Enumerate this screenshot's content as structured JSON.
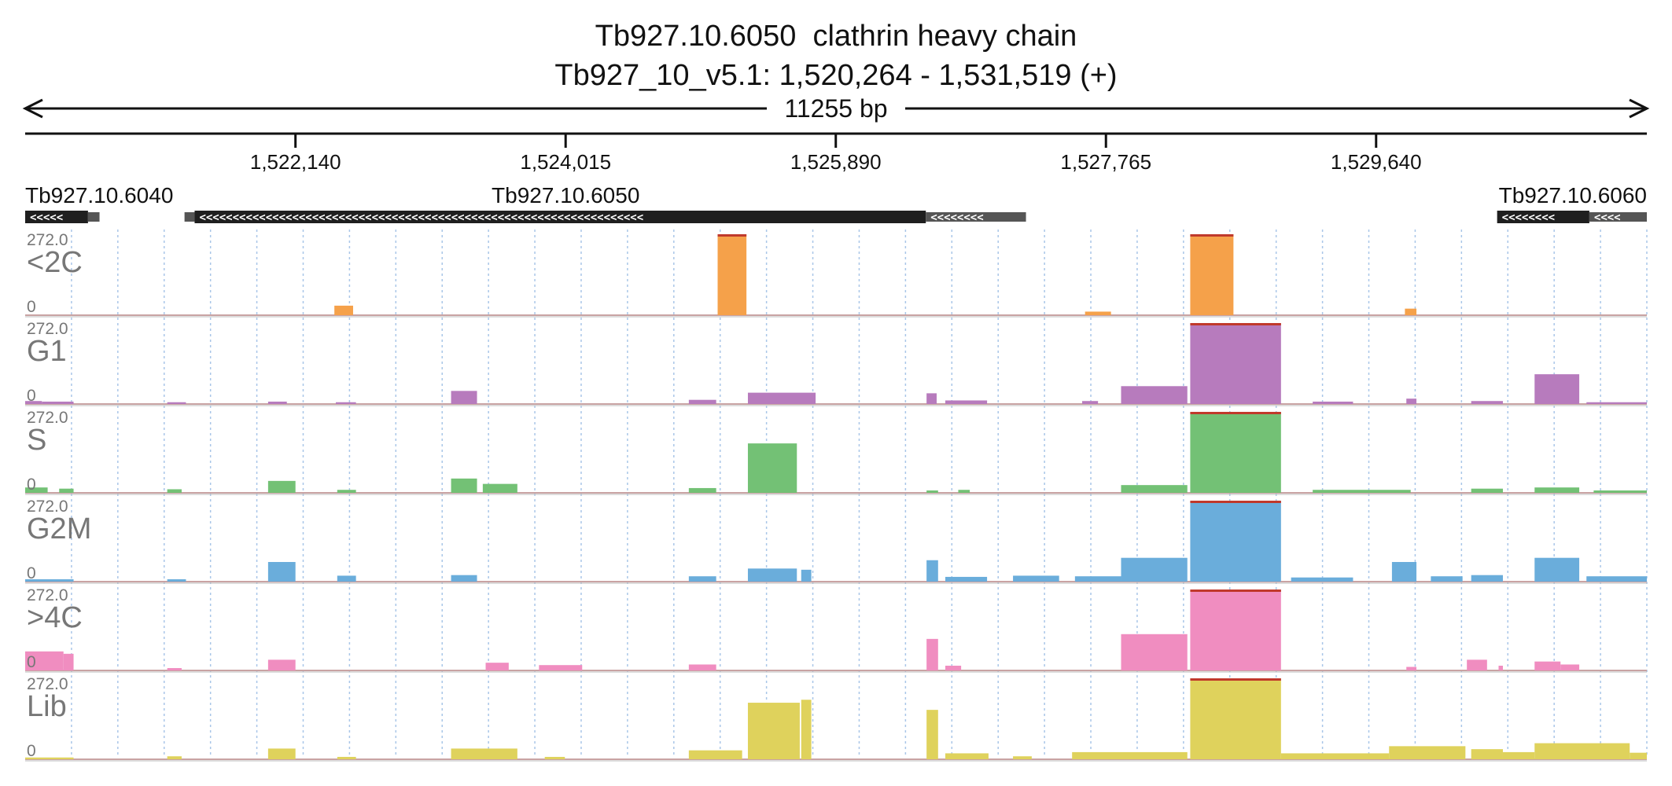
{
  "header": {
    "gene_line": "Tb927.10.6050  clathrin heavy chain",
    "locus_line": "Tb927_10_v5.1: 1,520,264 - 1,531,519 (+)",
    "span_label": "11255 bp"
  },
  "colors": {
    "grid": "#a9c6e8",
    "baseline": "#c9a3a3",
    "gene_feature": "#1f1f1f",
    "utr_feature": "#555555"
  },
  "chart_data": {
    "type": "area",
    "title": "Tb927.10.6050  clathrin heavy chain",
    "xlabel": "",
    "ylabel": "",
    "xlim": [
      1520264,
      1531519
    ],
    "ylim": [
      0,
      272.0
    ],
    "grid": true,
    "legend": "none",
    "x_ticks": [
      {
        "value": 1522140,
        "label": "1,522,140"
      },
      {
        "value": 1524015,
        "label": "1,524,015"
      },
      {
        "value": 1525890,
        "label": "1,525,890"
      },
      {
        "value": 1527765,
        "label": "1,527,765"
      },
      {
        "value": 1529640,
        "label": "1,529,640"
      }
    ],
    "genes": [
      {
        "name": "Tb927.10.6040",
        "strand": "-",
        "cds": [
          1520264,
          1520700
        ],
        "utr": [
          1520700,
          1520780
        ],
        "label_align": "start",
        "label_x": 1520264
      },
      {
        "name": "Tb927.10.6050",
        "strand": "-",
        "utr_left": [
          1521370,
          1521440
        ],
        "cds": [
          1521440,
          1526515
        ],
        "utr": [
          1526515,
          1527210
        ],
        "label_align": "middle",
        "label_x": 1524015
      },
      {
        "name": "Tb927.10.6060",
        "strand": "-",
        "cds": [
          1530480,
          1531120
        ],
        "utr": [
          1531120,
          1531519
        ],
        "label_align": "end",
        "label_x": 1531519
      }
    ],
    "series": [
      {
        "name": "<2C",
        "color": "#f5a14a",
        "scale_max": "272.0",
        "scale_min": "0",
        "bins": [
          [
            1522410,
            1522540,
            32
          ],
          [
            1525070,
            1525270,
            272
          ],
          [
            1527620,
            1527800,
            12
          ],
          [
            1528350,
            1528650,
            272
          ],
          [
            1529840,
            1529920,
            22
          ]
        ]
      },
      {
        "name": "G1",
        "color": "#b77bbd",
        "scale_max": "272.0",
        "scale_min": "0",
        "bins": [
          [
            1520264,
            1520380,
            10
          ],
          [
            1520380,
            1520600,
            8
          ],
          [
            1521250,
            1521380,
            6
          ],
          [
            1521950,
            1522080,
            8
          ],
          [
            1522420,
            1522560,
            6
          ],
          [
            1523220,
            1523400,
            44
          ],
          [
            1524870,
            1525060,
            14
          ],
          [
            1525280,
            1525750,
            38
          ],
          [
            1526520,
            1526590,
            36
          ],
          [
            1526650,
            1526940,
            12
          ],
          [
            1527600,
            1527710,
            10
          ],
          [
            1527870,
            1528330,
            60
          ],
          [
            1528350,
            1528980,
            272
          ],
          [
            1529200,
            1529480,
            8
          ],
          [
            1529850,
            1529920,
            18
          ],
          [
            1530300,
            1530520,
            10
          ],
          [
            1530740,
            1531050,
            100
          ],
          [
            1531100,
            1531519,
            6
          ]
        ]
      },
      {
        "name": "S",
        "color": "#73c175",
        "scale_max": "272.0",
        "scale_min": "0",
        "bins": [
          [
            1520264,
            1520420,
            18
          ],
          [
            1520500,
            1520600,
            14
          ],
          [
            1521250,
            1521350,
            12
          ],
          [
            1521950,
            1522140,
            40
          ],
          [
            1522430,
            1522560,
            10
          ],
          [
            1523220,
            1523400,
            48
          ],
          [
            1523440,
            1523680,
            30
          ],
          [
            1524870,
            1525060,
            16
          ],
          [
            1525280,
            1525620,
            166
          ],
          [
            1526520,
            1526600,
            8
          ],
          [
            1526740,
            1526820,
            10
          ],
          [
            1527870,
            1528330,
            26
          ],
          [
            1528350,
            1528980,
            272
          ],
          [
            1529200,
            1529880,
            10
          ],
          [
            1530300,
            1530520,
            14
          ],
          [
            1530740,
            1531050,
            18
          ],
          [
            1531150,
            1531519,
            8
          ]
        ]
      },
      {
        "name": "G2M",
        "color": "#6aaddb",
        "scale_max": "272.0",
        "scale_min": "0",
        "bins": [
          [
            1520264,
            1520600,
            8
          ],
          [
            1521250,
            1521380,
            8
          ],
          [
            1521950,
            1522140,
            66
          ],
          [
            1522430,
            1522560,
            20
          ],
          [
            1523220,
            1523400,
            22
          ],
          [
            1524870,
            1525060,
            18
          ],
          [
            1525280,
            1525620,
            44
          ],
          [
            1525650,
            1525720,
            40
          ],
          [
            1526520,
            1526600,
            72
          ],
          [
            1526650,
            1526940,
            16
          ],
          [
            1527120,
            1527440,
            20
          ],
          [
            1527550,
            1527870,
            18
          ],
          [
            1527870,
            1528330,
            80
          ],
          [
            1528350,
            1528980,
            272
          ],
          [
            1529050,
            1529480,
            14
          ],
          [
            1529750,
            1529920,
            66
          ],
          [
            1530020,
            1530240,
            18
          ],
          [
            1530300,
            1530520,
            22
          ],
          [
            1530740,
            1531050,
            80
          ],
          [
            1531100,
            1531519,
            18
          ]
        ]
      },
      {
        "name": ">4C",
        "color": "#f08dc0",
        "scale_max": "272.0",
        "scale_min": "0",
        "bins": [
          [
            1520264,
            1520530,
            64
          ],
          [
            1520530,
            1520600,
            56
          ],
          [
            1521250,
            1521350,
            8
          ],
          [
            1521950,
            1522140,
            36
          ],
          [
            1523460,
            1523620,
            26
          ],
          [
            1523830,
            1524130,
            18
          ],
          [
            1524870,
            1525060,
            20
          ],
          [
            1526520,
            1526600,
            106
          ],
          [
            1526650,
            1526760,
            16
          ],
          [
            1527870,
            1528330,
            122
          ],
          [
            1528350,
            1528980,
            272
          ],
          [
            1529850,
            1529920,
            12
          ],
          [
            1530270,
            1530410,
            36
          ],
          [
            1530490,
            1530520,
            16
          ],
          [
            1530740,
            1530920,
            30
          ],
          [
            1530920,
            1531050,
            20
          ]
        ]
      },
      {
        "name": "Lib",
        "color": "#dfd25c",
        "scale_max": "272.0",
        "scale_min": "0",
        "bins": [
          [
            1520264,
            1520600,
            6
          ],
          [
            1521250,
            1521350,
            10
          ],
          [
            1521950,
            1522140,
            36
          ],
          [
            1522430,
            1522560,
            8
          ],
          [
            1523220,
            1523680,
            36
          ],
          [
            1523870,
            1524010,
            8
          ],
          [
            1524870,
            1525240,
            30
          ],
          [
            1525280,
            1525640,
            190
          ],
          [
            1525650,
            1525720,
            200
          ],
          [
            1526520,
            1526600,
            166
          ],
          [
            1526650,
            1526950,
            20
          ],
          [
            1527120,
            1527250,
            10
          ],
          [
            1527530,
            1528330,
            24
          ],
          [
            1528350,
            1528980,
            272
          ],
          [
            1528980,
            1529730,
            20
          ],
          [
            1529730,
            1530260,
            44
          ],
          [
            1530300,
            1530520,
            34
          ],
          [
            1530520,
            1530740,
            24
          ],
          [
            1530740,
            1531400,
            54
          ],
          [
            1531400,
            1531519,
            22
          ]
        ]
      }
    ]
  }
}
